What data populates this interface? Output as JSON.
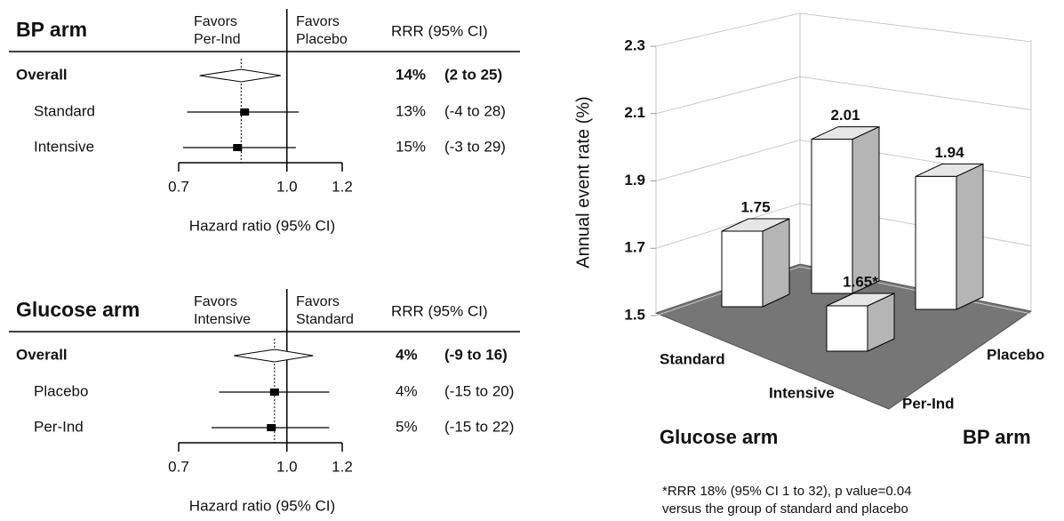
{
  "chart_data": [
    {
      "type": "forest",
      "title": "BP arm",
      "header_left": [
        "Favors",
        "Per-Ind"
      ],
      "header_right": [
        "Favors",
        "Placebo"
      ],
      "rrr_header": "RRR (95% CI)",
      "rows": [
        {
          "label": "Overall",
          "marker": "diamond",
          "estimate": 0.86,
          "lower": 0.75,
          "upper": 0.98,
          "rrr": "14%",
          "ci": "(2 to 25)"
        },
        {
          "label": "Standard",
          "marker": "square",
          "estimate": 0.87,
          "lower": 0.72,
          "upper": 1.04,
          "rrr": "13%",
          "ci": "(-4 to 28)"
        },
        {
          "label": "Intensive",
          "marker": "square",
          "estimate": 0.85,
          "lower": 0.71,
          "upper": 1.03,
          "rrr": "15%",
          "ci": "(-3 to 29)"
        }
      ],
      "xlabel": "Hazard ratio (95% CI)",
      "xlim": [
        0.7,
        1.2
      ],
      "xticks": [
        0.7,
        {
          "value": 1,
          "label": "1.0"
        },
        1.2
      ],
      "log_scale": true,
      "reference_line": 1
    },
    {
      "type": "forest",
      "title": "Glucose arm",
      "header_left": [
        "Favors",
        "Intensive"
      ],
      "header_right": [
        "Favors",
        "Standard"
      ],
      "rrr_header": "RRR (95% CI)",
      "rows": [
        {
          "label": "Overall",
          "marker": "diamond",
          "estimate": 0.96,
          "lower": 0.84,
          "upper": 1.09,
          "rrr": "4%",
          "ci": "(-9 to 16)"
        },
        {
          "label": "Placebo",
          "marker": "square",
          "estimate": 0.96,
          "lower": 0.8,
          "upper": 1.15,
          "rrr": "4%",
          "ci": "(-15 to 20)"
        },
        {
          "label": "Per-Ind",
          "marker": "square",
          "estimate": 0.95,
          "lower": 0.78,
          "upper": 1.15,
          "rrr": "5%",
          "ci": "(-15 to 22)"
        }
      ],
      "xlabel": "Hazard ratio (95% CI)",
      "xlim": [
        0.7,
        1.2
      ],
      "xticks": [
        0.7,
        {
          "value": 1,
          "label": "1.0"
        },
        1.2
      ],
      "log_scale": true,
      "reference_line": 1
    },
    {
      "type": "bar3d",
      "ylabel": "Annual event rate (%)",
      "ylim": [
        1.5,
        2.3
      ],
      "yticks": [
        1.5,
        1.7,
        1.9,
        2.1,
        2.3
      ],
      "xlabel": "Glucose arm",
      "categories": [
        "Standard",
        "Intensive"
      ],
      "zlabel": "BP arm",
      "series": [
        {
          "name": "Per-Ind",
          "values": [
            1.75,
            1.65
          ],
          "value_labels": [
            "1.75",
            "1.65*"
          ]
        },
        {
          "name": "Placebo",
          "values": [
            2.01,
            1.94
          ],
          "value_labels": [
            "2.01",
            "1.94"
          ]
        }
      ],
      "footnote": [
        "*RRR 18% (95% CI 1 to 32), p value=0.04",
        "versus the group of standard and placebo"
      ]
    }
  ]
}
